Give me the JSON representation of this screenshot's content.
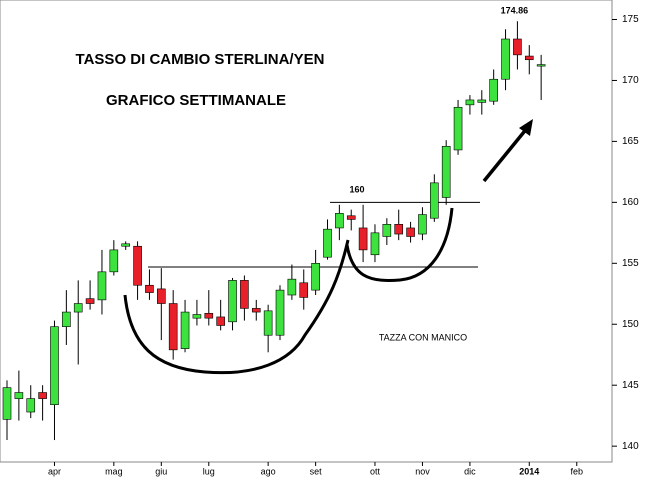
{
  "chart_data": {
    "type": "candlestick",
    "title": "TASSO DI CAMBIO STERLINA/YEN",
    "subtitle": "GRAFICO SETTIMANALE",
    "annotation": "TAZZA CON MANICO",
    "categories": [
      null,
      null,
      null,
      null,
      "apr",
      null,
      null,
      null,
      null,
      "mag",
      null,
      null,
      null,
      "giu",
      null,
      null,
      null,
      "lug",
      null,
      null,
      null,
      null,
      "ago",
      null,
      null,
      null,
      "set",
      null,
      null,
      null,
      null,
      "ott",
      null,
      null,
      null,
      "nov",
      null,
      null,
      null,
      "dic",
      null,
      null,
      null,
      null,
      "2014",
      null,
      null,
      null,
      "feb"
    ],
    "open": [
      142.2,
      143.9,
      142.8,
      144.4,
      143.4,
      149.8,
      151.0,
      152.1,
      152.0,
      154.3,
      156.4,
      156.4,
      153.2,
      152.9,
      151.7,
      148.0,
      150.5,
      150.9,
      150.6,
      150.2,
      153.6,
      151.3,
      149.1,
      149.1,
      152.4,
      153.4,
      152.8,
      155.5,
      157.9,
      158.9,
      157.9,
      155.7,
      157.2,
      158.2,
      157.9,
      157.4,
      158.7,
      160.4,
      164.3,
      168.0,
      168.2,
      168.3,
      170.1,
      173.4,
      172.0,
      171.3,
      null,
      null,
      null
    ],
    "high": [
      145.4,
      146.2,
      145.0,
      145.0,
      150.3,
      152.8,
      153.6,
      153.6,
      156.1,
      156.9,
      156.8,
      156.8,
      154.5,
      154.6,
      152.8,
      152.0,
      152.0,
      152.8,
      152.0,
      153.8,
      154.0,
      152.0,
      151.6,
      153.2,
      154.9,
      154.5,
      156.1,
      158.6,
      159.8,
      159.4,
      159.8,
      158.2,
      158.7,
      159.4,
      158.4,
      159.6,
      162.3,
      165.1,
      168.4,
      168.8,
      169.2,
      170.9,
      174.2,
      174.86,
      172.9,
      172.1,
      null,
      null,
      null
    ],
    "low": [
      140.5,
      142.1,
      142.3,
      142.1,
      140.5,
      148.3,
      146.7,
      151.2,
      150.8,
      154.0,
      156.1,
      152.0,
      152.0,
      148.7,
      147.1,
      147.7,
      149.9,
      149.9,
      149.5,
      149.5,
      150.3,
      150.3,
      147.7,
      148.7,
      152.0,
      151.2,
      152.4,
      155.3,
      156.9,
      157.7,
      155.1,
      155.1,
      156.5,
      156.9,
      156.7,
      156.9,
      158.4,
      159.8,
      163.9,
      167.2,
      167.2,
      168.0,
      169.2,
      170.9,
      170.5,
      168.4,
      null,
      null,
      null
    ],
    "close": [
      144.8,
      144.4,
      143.9,
      143.9,
      149.8,
      151.0,
      151.7,
      151.7,
      154.3,
      156.1,
      156.6,
      153.2,
      152.6,
      151.7,
      147.9,
      151.0,
      150.8,
      150.5,
      149.9,
      153.6,
      151.3,
      151.0,
      151.1,
      152.8,
      153.7,
      152.2,
      155.0,
      157.8,
      159.1,
      158.6,
      156.1,
      157.5,
      158.2,
      157.4,
      157.2,
      159.0,
      161.6,
      164.6,
      167.8,
      168.4,
      168.4,
      170.1,
      173.4,
      172.1,
      171.7,
      171.3,
      null,
      null,
      null
    ],
    "up_color": "#3ee23e",
    "down_color": "#e8202a",
    "levels": [
      160,
      154.7
    ],
    "ylim": [
      138.7,
      176.6
    ],
    "yticks": [
      140,
      145,
      150,
      155,
      160,
      165,
      170,
      175
    ]
  }
}
